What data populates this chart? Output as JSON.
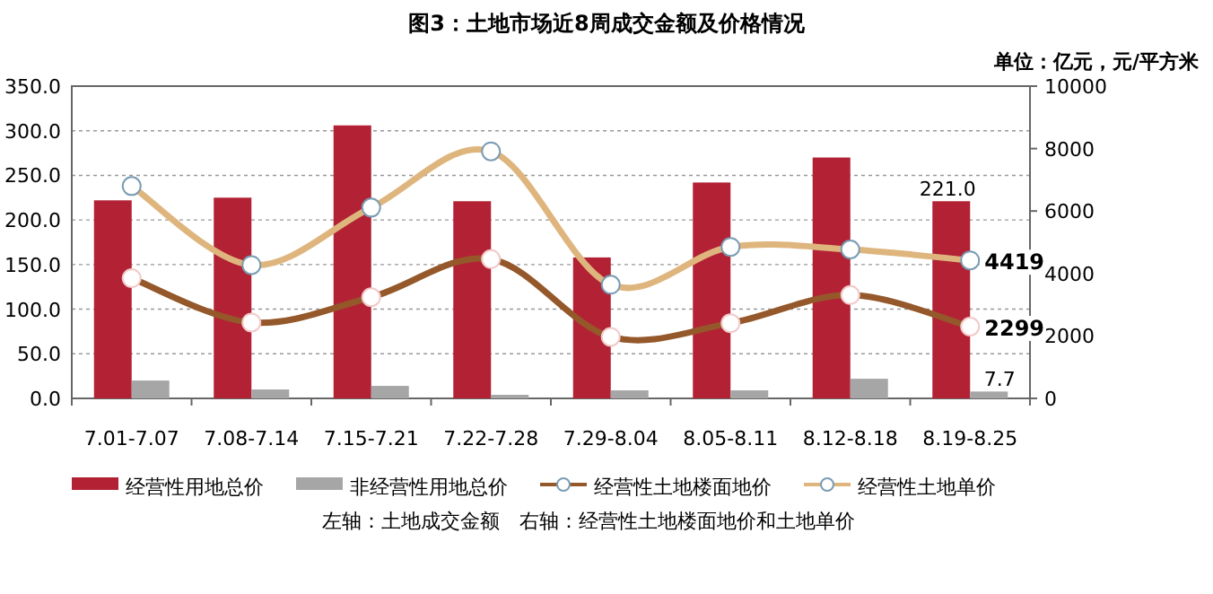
{
  "chart_data": {
    "type": "bar",
    "title": "图3：土地市场近8周成交金额及价格情况",
    "subtitle": "单位：亿元，元/平方米",
    "annotations": [
      "左轴：土地成交金额　右轴：经营性土地楼面地价和土地单价"
    ],
    "categories": [
      "7.01-7.07",
      "7.08-7.14",
      "7.15-7.21",
      "7.22-7.28",
      "7.29-8.04",
      "8.05-8.11",
      "8.12-8.18",
      "8.19-8.25"
    ],
    "series": [
      {
        "name": "经营性用地总价",
        "color": "#b22234",
        "values": [
          222,
          225,
          306,
          221,
          158,
          242,
          270,
          221.0
        ],
        "value_labels": [
          null,
          null,
          null,
          null,
          null,
          null,
          null,
          "221.0"
        ]
      },
      {
        "name": "非经营性用地总价",
        "color": "#a6a6a6",
        "values": [
          20,
          10,
          14,
          4,
          9,
          9,
          22,
          7.7
        ],
        "value_labels": [
          null,
          null,
          null,
          null,
          null,
          null,
          null,
          "7.7"
        ]
      },
      {
        "name": "经营性土地楼面地价",
        "type": "line",
        "axis": "y2",
        "color": "#94582a",
        "values": [
          3850,
          2430,
          3240,
          4460,
          1970,
          2410,
          3310,
          2299
        ],
        "value_labels": [
          null,
          null,
          null,
          null,
          null,
          null,
          null,
          "2299"
        ]
      },
      {
        "name": "经营性土地单价",
        "type": "line",
        "axis": "y2",
        "color": "#dfb57e",
        "values": [
          6800,
          4270,
          6110,
          7910,
          3640,
          4850,
          4770,
          4419
        ],
        "value_labels": [
          null,
          null,
          null,
          null,
          null,
          null,
          null,
          "4419"
        ]
      }
    ],
    "ylim": [
      0,
      350
    ],
    "yticks": [
      {
        "value": 0,
        "label": "0.0"
      },
      {
        "value": 50,
        "label": "50.0"
      },
      {
        "value": 100,
        "label": "100.0"
      },
      {
        "value": 150,
        "label": "150.0"
      },
      {
        "value": 200,
        "label": "200.0"
      },
      {
        "value": 250,
        "label": "250.0"
      },
      {
        "value": 300,
        "label": "300.0"
      },
      {
        "value": 350,
        "label": "350.0"
      }
    ],
    "y2lim": [
      0,
      10000
    ],
    "y2ticks": [
      0,
      2000,
      4000,
      6000,
      8000,
      10000
    ],
    "grid": "y",
    "legend": "bottom",
    "marker": "circle",
    "line_style": "solid"
  }
}
